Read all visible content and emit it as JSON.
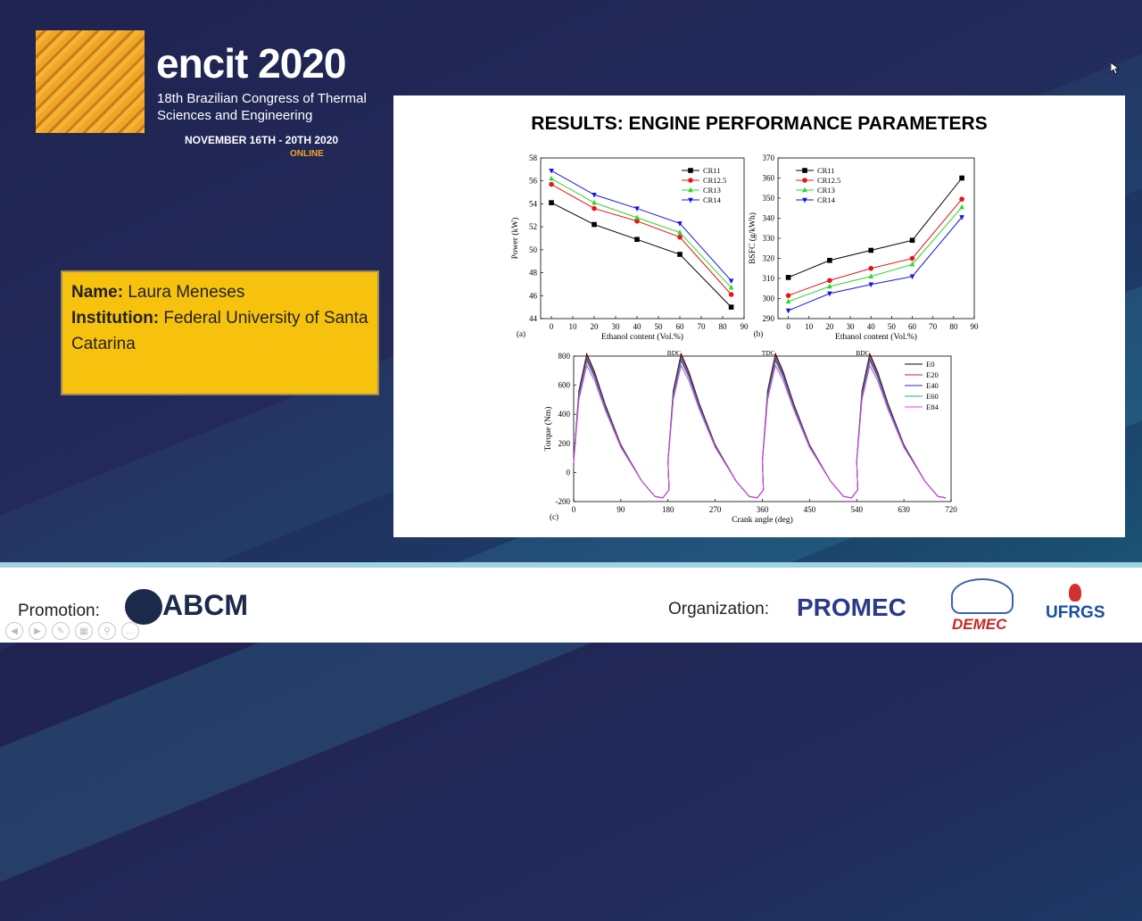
{
  "conference": {
    "brand": "encit 2020",
    "subtitle_line1": "18th Brazilian Congress of Thermal",
    "subtitle_line2": "Sciences and Engineering",
    "dates": "NOVEMBER 16TH - 20TH 2020",
    "mode": "ONLINE"
  },
  "presenter": {
    "name_label": "Name:",
    "name": "Laura Meneses",
    "institution_label": "Institution:",
    "institution": "Federal University of Santa Catarina"
  },
  "slide": {
    "title": "RESULTS: ENGINE PERFORMANCE PARAMETERS"
  },
  "footer": {
    "promotion_label": "Promotion:",
    "promotion_logo": "ABCM",
    "organization_label": "Organization:",
    "org_logos": [
      "PROMEC",
      "DEMEC",
      "UFRGS"
    ]
  },
  "chart_data": [
    {
      "type": "line",
      "panel_label": "(a)",
      "xlabel": "Ethanol content (Vol.%)",
      "ylabel": "Power (kW)",
      "xlim": [
        -5,
        90
      ],
      "ylim": [
        44,
        58
      ],
      "xticks": [
        0,
        10,
        20,
        30,
        40,
        50,
        60,
        70,
        80,
        90
      ],
      "yticks": [
        44,
        46,
        48,
        50,
        52,
        54,
        56,
        58
      ],
      "legend_position": "top-right",
      "x": [
        0,
        20,
        40,
        60,
        84
      ],
      "series": [
        {
          "name": "CR11",
          "color": "#000000",
          "marker": "square",
          "values": [
            54.1,
            52.2,
            50.9,
            49.6,
            45.0
          ]
        },
        {
          "name": "CR12.5",
          "color": "#e8141b",
          "marker": "circle",
          "values": [
            55.7,
            53.6,
            52.5,
            51.1,
            46.1
          ]
        },
        {
          "name": "CR13",
          "color": "#2ad82a",
          "marker": "triangle-up",
          "values": [
            56.2,
            54.1,
            52.8,
            51.5,
            46.7
          ]
        },
        {
          "name": "CR14",
          "color": "#1414e8",
          "marker": "triangle-down",
          "values": [
            56.9,
            54.8,
            53.6,
            52.3,
            47.3
          ]
        }
      ]
    },
    {
      "type": "line",
      "panel_label": "(b)",
      "xlabel": "Ethanol content (Vol.%)",
      "ylabel": "BSFC (g/kWh)",
      "xlim": [
        -5,
        90
      ],
      "ylim": [
        290,
        370
      ],
      "xticks": [
        0,
        10,
        20,
        30,
        40,
        50,
        60,
        70,
        80,
        90
      ],
      "yticks": [
        290,
        300,
        310,
        320,
        330,
        340,
        350,
        360,
        370
      ],
      "legend_position": "top-left",
      "x": [
        0,
        20,
        40,
        60,
        84
      ],
      "series": [
        {
          "name": "CR11",
          "color": "#000000",
          "marker": "square",
          "values": [
            310.5,
            319.0,
            324.0,
            329.0,
            360.0
          ]
        },
        {
          "name": "CR12.5",
          "color": "#e8141b",
          "marker": "circle",
          "values": [
            301.5,
            309.0,
            315.0,
            320.0,
            349.5
          ]
        },
        {
          "name": "CR13",
          "color": "#2ad82a",
          "marker": "triangle-up",
          "values": [
            298.5,
            306.0,
            311.0,
            317.0,
            345.5
          ]
        },
        {
          "name": "CR14",
          "color": "#1414e8",
          "marker": "triangle-down",
          "values": [
            294.0,
            302.5,
            307.0,
            311.0,
            340.5
          ]
        }
      ]
    },
    {
      "type": "line",
      "panel_label": "(c)",
      "xlabel": "Crank angle (deg)",
      "ylabel": "Torque (Nm)",
      "xlim": [
        0,
        720
      ],
      "ylim": [
        -200,
        800
      ],
      "xticks": [
        0,
        90,
        180,
        270,
        360,
        450,
        540,
        630,
        720
      ],
      "yticks": [
        -200,
        0,
        200,
        400,
        600,
        800
      ],
      "legend_position": "top-right",
      "annotations": [
        "BDC",
        "TDC",
        "BDC"
      ],
      "x": [
        0,
        10,
        25,
        40,
        60,
        90,
        130,
        155,
        170,
        182,
        195,
        205
      ],
      "series": [
        {
          "name": "E0",
          "color": "#000000",
          "values": [
            80,
            560,
            815,
            690,
            470,
            190,
            -60,
            -165,
            -175,
            -120,
            430,
            825
          ]
        },
        {
          "name": "E20",
          "color": "#cc2222",
          "values": [
            78,
            545,
            800,
            680,
            462,
            186,
            -60,
            -165,
            -175,
            -120,
            420,
            812
          ]
        },
        {
          "name": "E40",
          "color": "#2a2ab8",
          "values": [
            75,
            530,
            780,
            665,
            452,
            182,
            -60,
            -165,
            -175,
            -120,
            410,
            792
          ]
        },
        {
          "name": "E60",
          "color": "#1aa8a8",
          "values": [
            72,
            520,
            765,
            652,
            444,
            178,
            -60,
            -165,
            -175,
            -120,
            400,
            775
          ]
        },
        {
          "name": "E84",
          "color": "#e040e0",
          "values": [
            68,
            500,
            735,
            630,
            430,
            172,
            -60,
            -165,
            -175,
            -120,
            385,
            745
          ]
        }
      ]
    }
  ]
}
